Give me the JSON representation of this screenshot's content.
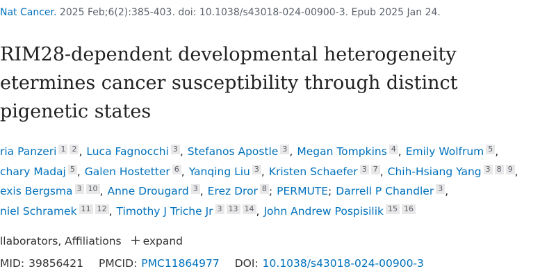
{
  "citation": {
    "journal": "Nat Cancer.",
    "details": "2025 Feb;6(2):385-403. doi: 10.1038/s43018-024-00900-3. Epub 2025 Jan 24."
  },
  "title": {
    "lines": [
      "RIM28-dependent developmental heterogeneity",
      "etermines cancer susceptibility through distinct",
      "pigenetic states"
    ]
  },
  "authors": {
    "lines": [
      [
        {
          "name": "ria Panzeri",
          "affs": [
            "1",
            "2"
          ],
          "sep": ","
        },
        {
          "name": "Luca Fagnocchi",
          "affs": [
            "3"
          ],
          "sep": ","
        },
        {
          "name": "Stefanos Apostle",
          "affs": [
            "3"
          ],
          "sep": ","
        },
        {
          "name": "Megan Tompkins",
          "affs": [
            "4"
          ],
          "sep": ","
        },
        {
          "name": "Emily Wolfrum",
          "affs": [
            "5"
          ],
          "sep": ","
        }
      ],
      [
        {
          "name": "chary Madaj",
          "affs": [
            "5"
          ],
          "sep": ","
        },
        {
          "name": "Galen Hostetter",
          "affs": [
            "6"
          ],
          "sep": ","
        },
        {
          "name": "Yanqing Liu",
          "affs": [
            "3"
          ],
          "sep": ","
        },
        {
          "name": "Kristen Schaefer",
          "affs": [
            "3",
            "7"
          ],
          "sep": ","
        },
        {
          "name": "Chih-Hsiang Yang",
          "affs": [
            "3",
            "8",
            "9"
          ],
          "sep": ","
        }
      ],
      [
        {
          "name": "exis Bergsma",
          "affs": [
            "3",
            "10"
          ],
          "sep": ","
        },
        {
          "name": "Anne Drougard",
          "affs": [
            "3"
          ],
          "sep": ","
        },
        {
          "name": "Erez Dror",
          "affs": [
            "8"
          ],
          "sep": ";"
        },
        {
          "name": "PERMUTE",
          "affs": [],
          "sep": ";"
        },
        {
          "name": "Darrell P Chandler",
          "affs": [
            "3"
          ],
          "sep": ","
        }
      ],
      [
        {
          "name": "niel Schramek",
          "affs": [
            "11",
            "12"
          ],
          "sep": ","
        },
        {
          "name": "Timothy J Triche Jr",
          "affs": [
            "3",
            "13",
            "14"
          ],
          "sep": ","
        },
        {
          "name": "John Andrew Pospisilik",
          "affs": [
            "15",
            "16"
          ]
        }
      ]
    ]
  },
  "expander": {
    "label": "llaborators, Affiliations",
    "action": "expand"
  },
  "ids": [
    {
      "label": "MID:",
      "value": "39856421"
    },
    {
      "label": "PMCID:",
      "value": "PMC11864977"
    },
    {
      "label": "DOI:",
      "value": "10.1038/s43018-024-00900-3"
    }
  ]
}
